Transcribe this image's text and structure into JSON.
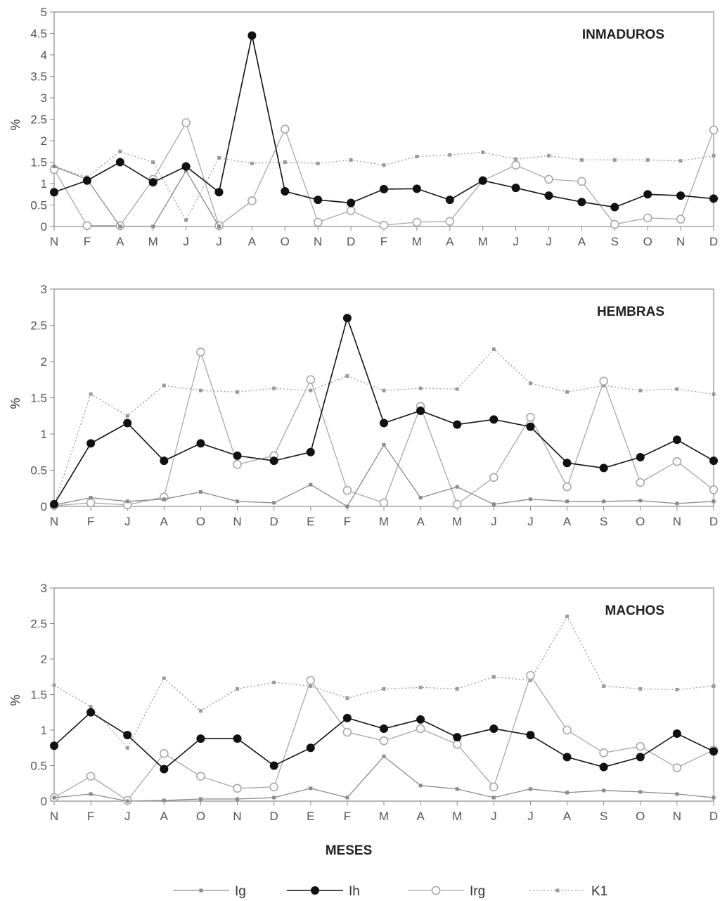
{
  "xlabel": "MESES",
  "legend": [
    {
      "name": "Ig",
      "color": "#8a8a8a",
      "marker": "small-square",
      "dash": "solid"
    },
    {
      "name": "Ih",
      "color": "#111111",
      "marker": "filled-circle",
      "dash": "solid"
    },
    {
      "name": "Irg",
      "color": "#a8a8a8",
      "marker": "open-circle",
      "dash": "solid"
    },
    {
      "name": "K1",
      "color": "#9a9a9a",
      "marker": "small-square",
      "dash": "dotted"
    }
  ],
  "chart_data": [
    {
      "type": "line",
      "title": "INMADUROS",
      "ylabel": "%",
      "ylim": [
        0,
        5
      ],
      "yticks": [
        "0",
        "0.5",
        "1",
        "1.5",
        "2",
        "2.5",
        "3",
        "3.5",
        "4",
        "4.5",
        "5"
      ],
      "categories": [
        "N",
        "F",
        "A",
        "M",
        "J",
        "J",
        "A",
        "O",
        "N",
        "D",
        "F",
        "M",
        "A",
        "M",
        "J",
        "J",
        "A",
        "S",
        "O",
        "N",
        "D"
      ],
      "series": [
        {
          "name": "Ig",
          "values": [
            1.4,
            1.1,
            0,
            0,
            1.3,
            0,
            null,
            null,
            null,
            null,
            null,
            null,
            null,
            null,
            null,
            null,
            null,
            null,
            null,
            null,
            null
          ]
        },
        {
          "name": "Ih",
          "values": [
            0.8,
            1.07,
            1.5,
            1.03,
            1.4,
            0.8,
            4.45,
            0.82,
            0.62,
            0.55,
            0.87,
            0.88,
            0.62,
            1.07,
            0.9,
            0.72,
            0.57,
            0.45,
            0.75,
            0.72,
            0.65
          ]
        },
        {
          "name": "Irg",
          "values": [
            1.33,
            0.02,
            0.02,
            1.1,
            2.42,
            0.02,
            0.6,
            2.27,
            0.1,
            0.37,
            0.03,
            0.1,
            0.12,
            1.07,
            1.43,
            1.1,
            1.05,
            0.05,
            0.2,
            0.17,
            2.25
          ]
        },
        {
          "name": "K1",
          "values": [
            1.4,
            1.15,
            1.75,
            1.5,
            0.15,
            1.6,
            1.47,
            1.5,
            1.47,
            1.55,
            1.43,
            1.63,
            1.67,
            1.73,
            1.57,
            1.65,
            1.55,
            1.55,
            1.55,
            1.53,
            1.65
          ]
        }
      ]
    },
    {
      "type": "line",
      "title": "HEMBRAS",
      "ylabel": "%",
      "ylim": [
        0,
        3
      ],
      "yticks": [
        "0",
        "0.5",
        "1",
        "1.5",
        "2",
        "2.5",
        "3"
      ],
      "categories": [
        "N",
        "F",
        "J",
        "A",
        "O",
        "N",
        "D",
        "E",
        "F",
        "M",
        "A",
        "M",
        "J",
        "J",
        "A",
        "S",
        "O",
        "N",
        "D"
      ],
      "series": [
        {
          "name": "Ig",
          "values": [
            0.02,
            0.12,
            0.07,
            0.1,
            0.2,
            0.07,
            0.05,
            0.3,
            0,
            0.85,
            0.12,
            0.27,
            0.03,
            0.1,
            0.07,
            0.07,
            0.08,
            0.04,
            0.07
          ]
        },
        {
          "name": "Ih",
          "values": [
            0.03,
            0.87,
            1.15,
            0.63,
            0.87,
            0.7,
            0.63,
            0.75,
            2.6,
            1.15,
            1.32,
            1.13,
            1.2,
            1.1,
            0.6,
            0.53,
            0.68,
            0.92,
            0.63
          ]
        },
        {
          "name": "Irg",
          "values": [
            0.01,
            0.05,
            0.02,
            0.13,
            2.13,
            0.58,
            0.7,
            1.75,
            0.22,
            0.05,
            1.38,
            0.03,
            0.4,
            1.23,
            0.27,
            1.73,
            0.33,
            0.62,
            0.23
          ]
        },
        {
          "name": "K1",
          "values": [
            0.02,
            1.55,
            1.25,
            1.67,
            1.6,
            1.58,
            1.63,
            1.6,
            1.8,
            1.6,
            1.63,
            1.62,
            2.17,
            1.7,
            1.58,
            1.67,
            1.6,
            1.62,
            1.55
          ]
        }
      ]
    },
    {
      "type": "line",
      "title": "MACHOS",
      "ylabel": "%",
      "ylim": [
        0,
        3
      ],
      "yticks": [
        "0",
        "0.5",
        "1",
        "1.5",
        "2",
        "2.5",
        "3"
      ],
      "categories": [
        "N",
        "F",
        "J",
        "A",
        "O",
        "N",
        "D",
        "E",
        "F",
        "M",
        "A",
        "M",
        "J",
        "J",
        "A",
        "S",
        "O",
        "N",
        "D"
      ],
      "series": [
        {
          "name": "Ig",
          "values": [
            0.05,
            0.1,
            0,
            0.01,
            0.03,
            0.03,
            0.05,
            0.18,
            0.05,
            0.63,
            0.22,
            0.17,
            0.05,
            0.17,
            0.12,
            0.15,
            0.13,
            0.1,
            0.05
          ]
        },
        {
          "name": "Ih",
          "values": [
            0.78,
            1.25,
            0.93,
            0.45,
            0.88,
            0.88,
            0.5,
            0.75,
            1.17,
            1.02,
            1.15,
            0.9,
            1.02,
            0.93,
            0.62,
            0.48,
            0.62,
            0.95,
            0.7
          ]
        },
        {
          "name": "Irg",
          "values": [
            0.05,
            0.35,
            0.01,
            0.67,
            0.35,
            0.18,
            0.2,
            1.7,
            0.97,
            0.85,
            1.02,
            0.8,
            0.2,
            1.77,
            1.0,
            0.68,
            0.77,
            0.47,
            0.72
          ]
        },
        {
          "name": "K1",
          "values": [
            1.63,
            1.33,
            0.75,
            1.73,
            1.27,
            1.58,
            1.67,
            1.62,
            1.45,
            1.58,
            1.6,
            1.58,
            1.75,
            1.7,
            2.6,
            1.62,
            1.58,
            1.57,
            1.62
          ]
        }
      ]
    }
  ]
}
